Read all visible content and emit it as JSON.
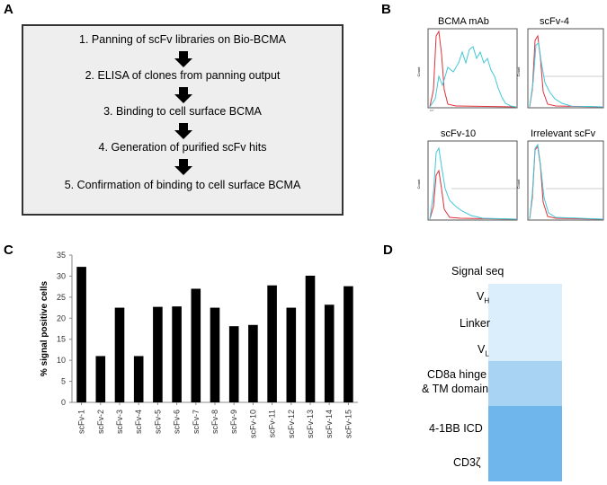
{
  "panel_labels": {
    "a": "A",
    "b": "B",
    "c": "C",
    "d": "D"
  },
  "panel_a": {
    "steps": [
      "1. Panning of scFv libraries on Bio-BCMA",
      "2. ELISA of clones from panning output",
      "3. Binding to cell surface BCMA",
      "4. Generation of purified scFv hits",
      "5. Confirmation of binding to cell surface BCMA"
    ],
    "arrow_color": "#000000"
  },
  "panel_b": {
    "ylabel": "Count",
    "histograms": [
      {
        "title": "BCMA mAb"
      },
      {
        "title": "scFv-4"
      },
      {
        "title": "scFv-10"
      },
      {
        "title": "Irrelevant scFv"
      }
    ],
    "colors": {
      "control": "#e0303a",
      "sample": "#40c8d8"
    }
  },
  "chart_data": {
    "type": "bar",
    "title": "",
    "xlabel": "",
    "ylabel": "% signal positive cells",
    "categories": [
      "scFv-1",
      "scFv-2",
      "scFv-3",
      "scFv-4",
      "scFv-5",
      "scFv-6",
      "scFv-7",
      "scFv-8",
      "scFv-9",
      "scFv-10",
      "scFv-11",
      "scFv-12",
      "scFv-13",
      "scFv-14",
      "scFv-15"
    ],
    "values": [
      32.2,
      11.0,
      22.5,
      11.0,
      22.7,
      22.8,
      27.0,
      22.5,
      18.1,
      18.4,
      27.8,
      22.5,
      30.1,
      23.2,
      27.6
    ],
    "ylim": [
      0,
      35
    ],
    "yticks": [
      "0",
      "5",
      "10",
      "15",
      "20",
      "25",
      "30",
      "35"
    ],
    "bar_color": "#000000",
    "grid": false
  },
  "panel_d": {
    "segments": [
      {
        "lines": [
          "Signal seq"
        ],
        "color": "#ffffff"
      },
      {
        "lines": [
          "V",
          "H"
        ],
        "color": "#dbeefc"
      },
      {
        "lines": [
          "Linker"
        ],
        "color": "#dbeefc"
      },
      {
        "lines": [
          "V",
          "L"
        ],
        "color": "#dbeefc"
      },
      {
        "lines": [
          "CD8a hinge",
          "& TM domain"
        ],
        "color": "#a9d3f2"
      },
      {
        "lines": [
          "4-1BB ICD"
        ],
        "color": "#6fb6ec"
      },
      {
        "lines": [
          "CD3ζ"
        ],
        "color": "#6fb6ec"
      }
    ]
  }
}
